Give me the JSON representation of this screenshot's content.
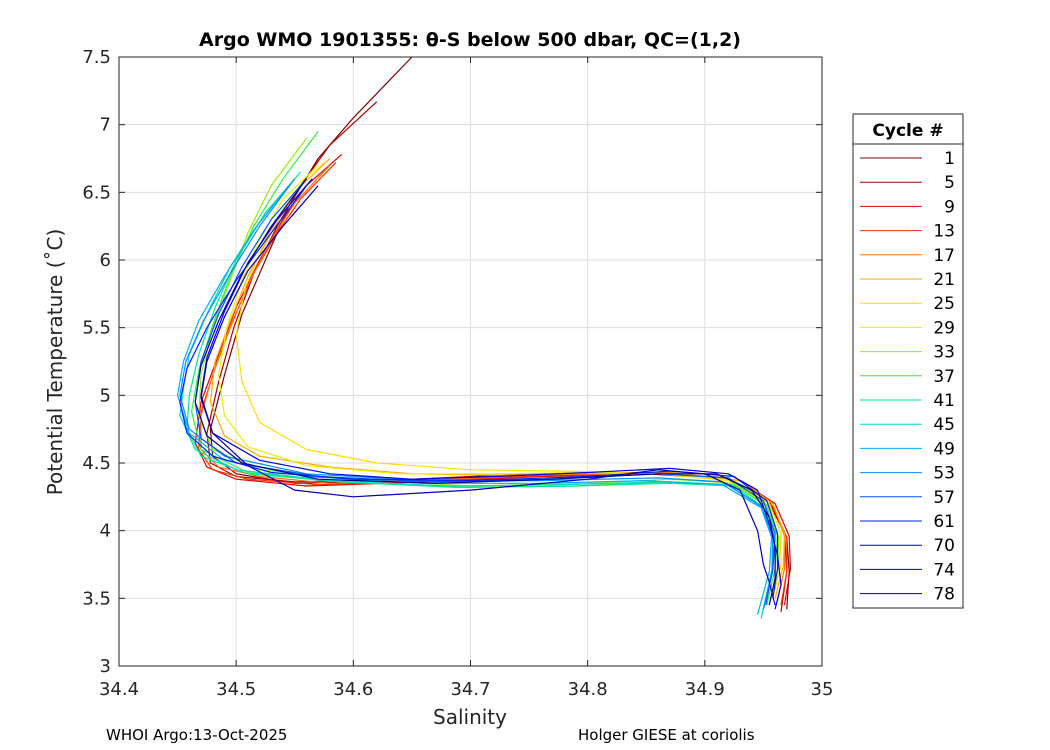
{
  "chart_data": {
    "type": "line",
    "title": "Argo WMO 1901355: θ-S below 500 dbar,  QC=(1,2)",
    "xlabel": "Salinity",
    "ylabel": "Potential Temperature (˚C)",
    "xlim": [
      34.4,
      35
    ],
    "ylim": [
      3,
      7.5
    ],
    "xticks": [
      "34.4",
      "34.5",
      "34.6",
      "34.7",
      "34.8",
      "34.9",
      "35"
    ],
    "yticks": [
      "3",
      "3.5",
      "4",
      "4.5",
      "5",
      "5.5",
      "6",
      "6.5",
      "7",
      "7.5"
    ],
    "grid": true,
    "legend": {
      "title": "Cycle #",
      "placement": "right-outside"
    },
    "series": [
      {
        "name": "1",
        "color": "#800000",
        "salinity": [
          34.65,
          34.6,
          34.57,
          34.545,
          34.525,
          34.505,
          34.49,
          34.478,
          34.48,
          34.5,
          34.55,
          34.65,
          34.75,
          34.85,
          34.92,
          34.955,
          34.97,
          34.972,
          34.97
        ],
        "theta": [
          7.5,
          7.05,
          6.75,
          6.4,
          6.0,
          5.6,
          5.15,
          4.75,
          4.55,
          4.42,
          4.35,
          4.37,
          4.4,
          4.42,
          4.38,
          4.2,
          3.95,
          3.7,
          3.42
        ]
      },
      {
        "name": "5",
        "color": "#b00000",
        "salinity": [
          34.62,
          34.58,
          34.555,
          34.535,
          34.515,
          34.498,
          34.485,
          34.475,
          34.478,
          34.5,
          34.55,
          34.65,
          34.75,
          34.85,
          34.92,
          34.955,
          34.968,
          34.97,
          34.965
        ],
        "theta": [
          7.17,
          6.85,
          6.55,
          6.25,
          5.9,
          5.5,
          5.1,
          4.72,
          4.5,
          4.4,
          4.36,
          4.38,
          4.42,
          4.43,
          4.39,
          4.22,
          3.98,
          3.7,
          3.4
        ]
      },
      {
        "name": "9",
        "color": "#e00000",
        "salinity": [
          34.59,
          34.56,
          34.54,
          34.52,
          34.5,
          34.485,
          34.47,
          34.465,
          34.475,
          34.5,
          34.56,
          34.66,
          34.76,
          34.86,
          34.93,
          34.96,
          34.972,
          34.973,
          34.968
        ],
        "theta": [
          6.78,
          6.55,
          6.3,
          6.0,
          5.65,
          5.3,
          4.95,
          4.65,
          4.47,
          4.38,
          4.33,
          4.36,
          4.4,
          4.42,
          4.37,
          4.2,
          3.96,
          3.72,
          3.45
        ]
      },
      {
        "name": "13",
        "color": "#ff3000",
        "salinity": [
          34.585,
          34.555,
          34.535,
          34.515,
          34.497,
          34.482,
          34.47,
          34.468,
          34.48,
          34.51,
          34.57,
          34.67,
          34.77,
          34.87,
          34.93,
          34.958,
          34.97,
          34.97,
          34.965
        ],
        "theta": [
          6.72,
          6.45,
          6.2,
          5.9,
          5.55,
          5.2,
          4.88,
          4.6,
          4.45,
          4.38,
          4.34,
          4.37,
          4.41,
          4.42,
          4.37,
          4.18,
          3.95,
          3.7,
          3.45
        ]
      },
      {
        "name": "17",
        "color": "#ff7000",
        "salinity": [
          34.58,
          34.55,
          34.53,
          34.512,
          34.495,
          34.48,
          34.47,
          34.47,
          34.485,
          34.52,
          34.58,
          34.68,
          34.78,
          34.87,
          34.93,
          34.958,
          34.968,
          34.968,
          34.962
        ],
        "theta": [
          6.7,
          6.42,
          6.15,
          5.85,
          5.5,
          5.15,
          4.85,
          4.6,
          4.47,
          4.4,
          4.35,
          4.38,
          4.42,
          4.43,
          4.37,
          4.2,
          3.96,
          3.72,
          3.48
        ]
      },
      {
        "name": "21",
        "color": "#ffaa00",
        "salinity": [
          34.58,
          34.55,
          34.53,
          34.51,
          34.495,
          34.482,
          34.478,
          34.49,
          34.52,
          34.58,
          34.65,
          34.72,
          34.8,
          34.88,
          34.93,
          34.958,
          34.968,
          34.967,
          34.96
        ],
        "theta": [
          6.75,
          6.5,
          6.2,
          5.88,
          5.55,
          5.25,
          4.95,
          4.7,
          4.55,
          4.47,
          4.42,
          4.41,
          4.42,
          4.42,
          4.37,
          4.2,
          3.98,
          3.74,
          3.5
        ]
      },
      {
        "name": "25",
        "color": "#ffdd00",
        "salinity": [
          34.575,
          34.545,
          34.525,
          34.508,
          34.5,
          34.505,
          34.52,
          34.56,
          34.62,
          34.7,
          34.78,
          34.86,
          34.92,
          34.955,
          34.965,
          34.965,
          34.958
        ],
        "theta": [
          6.72,
          6.45,
          6.15,
          5.8,
          5.45,
          5.1,
          4.8,
          4.6,
          4.5,
          4.45,
          4.44,
          4.42,
          4.37,
          4.2,
          3.98,
          3.75,
          3.5
        ]
      },
      {
        "name": "29",
        "color": "#e8f000",
        "salinity": [
          34.57,
          34.54,
          34.52,
          34.505,
          34.492,
          34.485,
          34.49,
          34.51,
          34.56,
          34.64,
          34.72,
          34.8,
          34.87,
          34.925,
          34.955,
          34.965,
          34.963,
          34.958
        ],
        "theta": [
          6.7,
          6.45,
          6.15,
          5.85,
          5.5,
          5.15,
          4.85,
          4.62,
          4.48,
          4.42,
          4.42,
          4.43,
          4.42,
          4.37,
          4.2,
          3.98,
          3.74,
          3.5
        ]
      },
      {
        "name": "33",
        "color": "#99ee00",
        "salinity": [
          34.56,
          34.53,
          34.51,
          34.495,
          34.48,
          34.47,
          34.468,
          34.48,
          34.52,
          34.6,
          34.7,
          34.8,
          34.87,
          34.925,
          34.955,
          34.963,
          34.962,
          34.956
        ],
        "theta": [
          6.9,
          6.55,
          6.2,
          5.85,
          5.5,
          5.15,
          4.85,
          4.6,
          4.45,
          4.38,
          4.33,
          4.35,
          4.38,
          4.35,
          4.18,
          3.95,
          3.72,
          3.48
        ]
      },
      {
        "name": "37",
        "color": "#30ee40",
        "salinity": [
          34.57,
          34.54,
          34.515,
          34.495,
          34.48,
          34.468,
          34.462,
          34.47,
          34.51,
          34.59,
          34.69,
          34.79,
          34.87,
          34.925,
          34.953,
          34.962,
          34.96,
          34.953
        ],
        "theta": [
          6.95,
          6.6,
          6.25,
          5.88,
          5.52,
          5.18,
          4.88,
          4.6,
          4.43,
          4.36,
          4.32,
          4.33,
          4.36,
          4.34,
          4.18,
          3.96,
          3.72,
          3.45
        ]
      },
      {
        "name": "41",
        "color": "#00e890",
        "salinity": [
          34.555,
          34.525,
          34.5,
          34.482,
          34.468,
          34.46,
          34.458,
          34.47,
          34.51,
          34.59,
          34.69,
          34.79,
          34.87,
          34.925,
          34.952,
          34.96,
          34.958,
          34.95
        ],
        "theta": [
          6.65,
          6.35,
          6.0,
          5.65,
          5.3,
          5.0,
          4.75,
          4.55,
          4.42,
          4.36,
          4.32,
          4.33,
          4.35,
          4.33,
          4.16,
          3.94,
          3.7,
          3.42
        ]
      },
      {
        "name": "45",
        "color": "#00d8c8",
        "salinity": [
          34.55,
          34.52,
          34.495,
          34.475,
          34.46,
          34.455,
          34.452,
          34.465,
          34.5,
          34.58,
          34.68,
          34.78,
          34.86,
          34.92,
          34.95,
          34.958,
          34.957,
          34.948
        ],
        "theta": [
          6.6,
          6.28,
          5.95,
          5.6,
          5.3,
          5.05,
          4.85,
          4.6,
          4.45,
          4.37,
          4.33,
          4.34,
          4.36,
          4.34,
          4.17,
          3.95,
          3.7,
          3.35
        ]
      },
      {
        "name": "49",
        "color": "#00b0f0",
        "salinity": [
          34.545,
          34.515,
          34.49,
          34.468,
          34.455,
          34.45,
          34.46,
          34.49,
          34.56,
          34.66,
          34.76,
          34.85,
          34.915,
          34.948,
          34.957,
          34.955,
          34.945
        ],
        "theta": [
          6.55,
          6.22,
          5.88,
          5.55,
          5.25,
          5.0,
          4.72,
          4.52,
          4.4,
          4.35,
          4.35,
          4.37,
          4.34,
          4.17,
          3.95,
          3.7,
          3.38
        ]
      },
      {
        "name": "53",
        "color": "#0090ff",
        "salinity": [
          34.55,
          34.52,
          34.495,
          34.472,
          34.457,
          34.452,
          34.46,
          34.49,
          34.56,
          34.66,
          34.76,
          34.86,
          34.915,
          34.948,
          34.958,
          34.958,
          34.95
        ],
        "theta": [
          6.6,
          6.25,
          5.9,
          5.55,
          5.25,
          5.0,
          4.75,
          4.55,
          4.42,
          4.37,
          4.37,
          4.39,
          4.36,
          4.18,
          3.96,
          3.72,
          3.42
        ]
      },
      {
        "name": "57",
        "color": "#0055ff",
        "salinity": [
          34.56,
          34.53,
          34.505,
          34.485,
          34.47,
          34.465,
          34.47,
          34.5,
          34.57,
          34.67,
          34.77,
          34.86,
          34.92,
          34.95,
          34.96,
          34.958,
          34.952
        ],
        "theta": [
          6.6,
          6.3,
          5.95,
          5.6,
          5.25,
          4.95,
          4.68,
          4.5,
          4.4,
          4.36,
          4.38,
          4.42,
          4.39,
          4.22,
          3.98,
          3.72,
          3.45
        ]
      },
      {
        "name": "61",
        "color": "#0020ff",
        "salinity": [
          34.56,
          34.53,
          34.5,
          34.475,
          34.458,
          34.452,
          34.458,
          34.48,
          34.53,
          34.6,
          34.7,
          34.8,
          34.87,
          34.925,
          34.953,
          34.962,
          34.962,
          34.958
        ],
        "theta": [
          6.55,
          6.2,
          5.85,
          5.5,
          5.2,
          4.95,
          4.72,
          4.55,
          4.43,
          4.38,
          4.37,
          4.4,
          4.44,
          4.4,
          4.22,
          3.98,
          3.72,
          3.5
        ]
      },
      {
        "name": "70",
        "color": "#0000e0",
        "salinity": [
          34.565,
          34.535,
          34.51,
          34.49,
          34.475,
          34.47,
          34.48,
          34.52,
          34.58,
          34.65,
          34.72,
          34.8,
          34.87,
          34.92,
          34.945,
          34.955,
          34.962,
          34.965,
          34.96
        ],
        "theta": [
          6.6,
          6.3,
          5.98,
          5.62,
          5.28,
          5.0,
          4.72,
          4.52,
          4.42,
          4.38,
          4.4,
          4.43,
          4.46,
          4.42,
          4.3,
          4.05,
          3.82,
          3.6,
          3.42
        ]
      },
      {
        "name": "74",
        "color": "#0000b8",
        "salinity": [
          34.57,
          34.54,
          34.51,
          34.49,
          34.475,
          34.47,
          34.48,
          34.51,
          34.55,
          34.6,
          34.7,
          34.8,
          34.86,
          34.9,
          34.93,
          34.945,
          34.95,
          34.955,
          34.96
        ],
        "theta": [
          6.55,
          6.25,
          5.92,
          5.58,
          5.25,
          4.98,
          4.72,
          4.48,
          4.3,
          4.25,
          4.3,
          4.38,
          4.45,
          4.42,
          4.3,
          4.0,
          3.75,
          3.62,
          3.45
        ]
      },
      {
        "name": "78",
        "color": "#000090",
        "salinity": [
          34.56,
          34.53,
          34.505,
          34.485,
          34.47,
          34.465,
          34.475,
          34.505,
          34.57,
          34.67,
          34.77,
          34.86,
          34.91,
          34.94,
          34.955,
          34.96,
          34.96,
          34.955
        ],
        "theta": [
          6.6,
          6.25,
          5.9,
          5.55,
          5.22,
          4.95,
          4.7,
          4.5,
          4.38,
          4.35,
          4.38,
          4.42,
          4.42,
          4.3,
          4.1,
          3.88,
          3.65,
          3.45
        ]
      }
    ]
  },
  "footer": {
    "left": "WHOI Argo:13-Oct-2025",
    "right": "Holger GIESE at coriolis"
  }
}
